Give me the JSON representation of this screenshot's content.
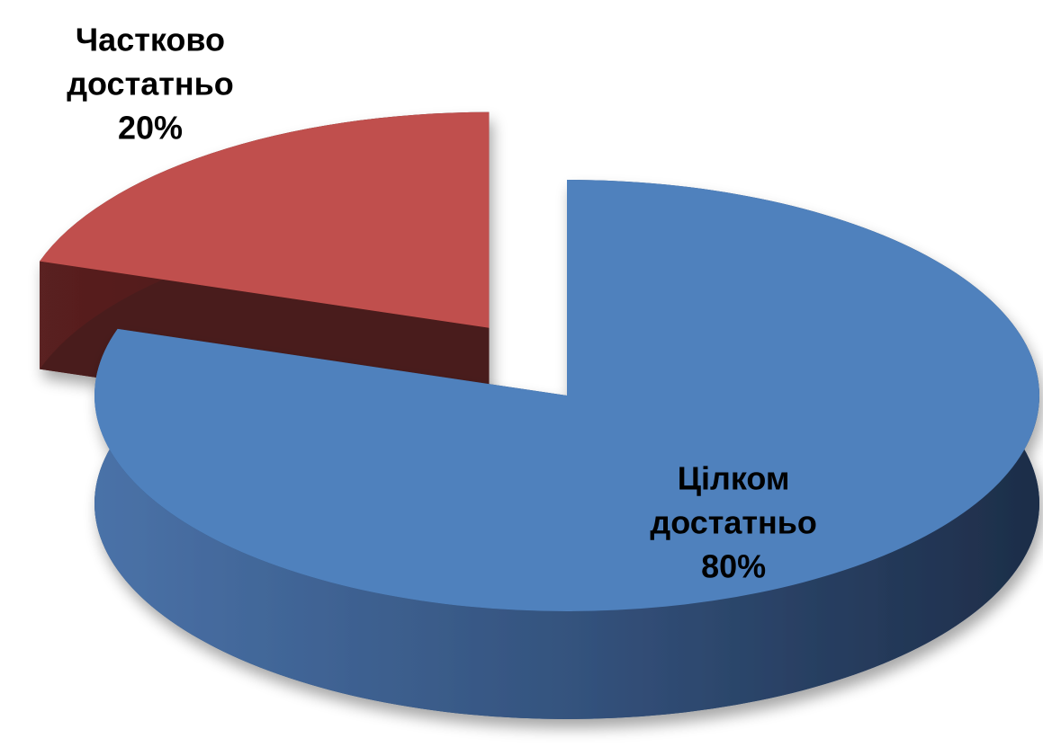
{
  "chart_data": {
    "type": "pie",
    "categories": [
      "Цілком достатньо",
      "Частково достатньо"
    ],
    "values": [
      80,
      20
    ],
    "value_labels": [
      "80%",
      "20%"
    ],
    "colors": [
      "#4f81bd",
      "#c0504d"
    ]
  }
}
